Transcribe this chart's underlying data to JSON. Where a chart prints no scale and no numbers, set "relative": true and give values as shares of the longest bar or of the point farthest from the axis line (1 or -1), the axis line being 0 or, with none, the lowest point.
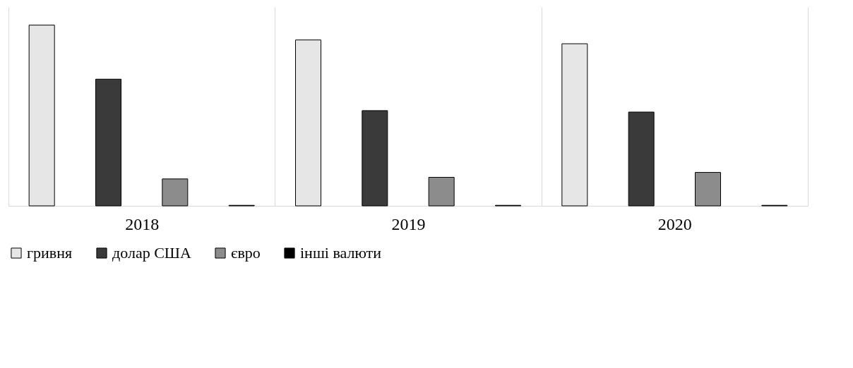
{
  "chart_data": {
    "type": "bar",
    "relative": true,
    "categories": [
      "2018",
      "2019",
      "2020"
    ],
    "series": [
      {
        "name": "гривня",
        "color": "#e6e6e6",
        "values": [
          1,
          0.918,
          0.897
        ]
      },
      {
        "name": "долар США",
        "color": "#3a3a3a",
        "values": [
          0.701,
          0.527,
          0.519
        ]
      },
      {
        "name": "євро",
        "color": "#8c8c8c",
        "values": [
          0.149,
          0.158,
          0.185
        ]
      },
      {
        "name": "інші валюти",
        "color": "#000000",
        "values": [
          0.003,
          0.003,
          0.003
        ]
      }
    ],
    "grid": "x",
    "legend": "bottom"
  }
}
